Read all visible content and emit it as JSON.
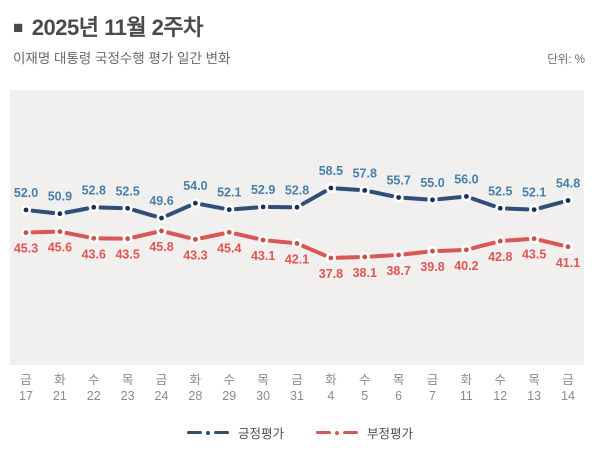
{
  "header": {
    "bullet": "■",
    "title": "2025년 11월 2주차",
    "subtitle": "이재명 대통령 국정수행 평가 일간 변화",
    "unit_label": "단위: %"
  },
  "chart_data": {
    "type": "line",
    "title": "이재명 대통령 국정수행 평가 일간 변화",
    "unit": "%",
    "background": "#f1f0ee",
    "grid": false,
    "legend_position": "bottom",
    "ylim": [
      30,
      70
    ],
    "x_labels": [
      {
        "day": "금",
        "date": "17"
      },
      {
        "day": "화",
        "date": "21"
      },
      {
        "day": "수",
        "date": "22"
      },
      {
        "day": "목",
        "date": "23"
      },
      {
        "day": "금",
        "date": "24"
      },
      {
        "day": "화",
        "date": "28"
      },
      {
        "day": "수",
        "date": "29"
      },
      {
        "day": "목",
        "date": "30"
      },
      {
        "day": "금",
        "date": "31"
      },
      {
        "day": "화",
        "date": "4"
      },
      {
        "day": "수",
        "date": "5"
      },
      {
        "day": "목",
        "date": "6"
      },
      {
        "day": "금",
        "date": "7"
      },
      {
        "day": "화",
        "date": "11"
      },
      {
        "day": "수",
        "date": "12"
      },
      {
        "day": "목",
        "date": "13"
      },
      {
        "day": "금",
        "date": "14"
      }
    ],
    "series": [
      {
        "name": "긍정평가",
        "color": "#2f4f78",
        "dot_color": "#1c2f4e",
        "label_color": "#4681ac",
        "values": [
          52.0,
          50.9,
          52.8,
          52.5,
          49.6,
          54.0,
          52.1,
          52.9,
          52.8,
          58.5,
          57.8,
          55.7,
          55.0,
          56.0,
          52.5,
          52.1,
          54.8
        ]
      },
      {
        "name": "부정평가",
        "color": "#d95755",
        "dot_color": "#c4504e",
        "label_color": "#e25553",
        "values": [
          45.3,
          45.6,
          43.6,
          43.5,
          45.8,
          43.3,
          45.4,
          43.1,
          42.1,
          37.8,
          38.1,
          38.7,
          39.8,
          40.2,
          42.8,
          43.5,
          41.1
        ]
      }
    ]
  }
}
